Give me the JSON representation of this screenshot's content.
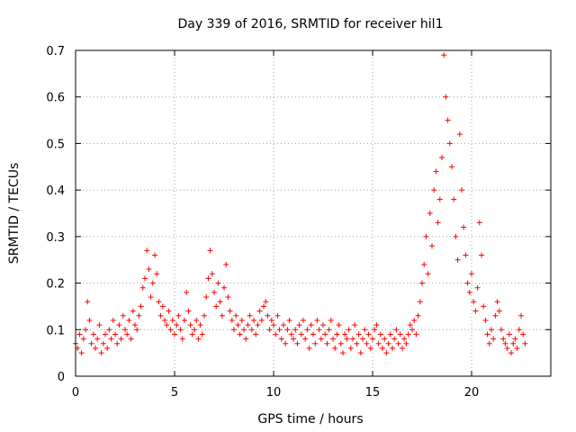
{
  "chart_data": {
    "type": "scatter",
    "title": "Day 339 of 2016, SRMTID for receiver hil1",
    "xlabel": "GPS time / hours",
    "ylabel": "SRMTID / TECUs",
    "xlim": [
      0,
      24
    ],
    "ylim": [
      0,
      0.7
    ],
    "xticks": [
      "0",
      "5",
      "10",
      "15",
      "20"
    ],
    "yticks": [
      "0",
      "0.1",
      "0.2",
      "0.3",
      "0.4",
      "0.5",
      "0.6",
      "0.7"
    ],
    "grid": true,
    "marker": "+",
    "color": "#ff0000",
    "series": [
      {
        "name": "hil1",
        "x": [
          0.0,
          0.1,
          0.2,
          0.3,
          0.4,
          0.5,
          0.6,
          0.7,
          0.8,
          0.9,
          1.0,
          1.1,
          1.2,
          1.3,
          1.4,
          1.5,
          1.6,
          1.7,
          1.8,
          1.9,
          2.0,
          2.1,
          2.2,
          2.3,
          2.4,
          2.5,
          2.6,
          2.7,
          2.8,
          2.9,
          3.0,
          3.1,
          3.2,
          3.3,
          3.4,
          3.5,
          3.6,
          3.7,
          3.8,
          3.9,
          4.0,
          4.1,
          4.2,
          4.3,
          4.4,
          4.5,
          4.6,
          4.7,
          4.8,
          4.9,
          5.0,
          5.1,
          5.2,
          5.3,
          5.4,
          5.5,
          5.6,
          5.7,
          5.8,
          5.9,
          6.0,
          6.1,
          6.2,
          6.3,
          6.4,
          6.5,
          6.6,
          6.7,
          6.8,
          6.9,
          7.0,
          7.1,
          7.2,
          7.3,
          7.4,
          7.5,
          7.6,
          7.7,
          7.8,
          7.9,
          8.0,
          8.1,
          8.2,
          8.3,
          8.4,
          8.5,
          8.6,
          8.7,
          8.8,
          8.9,
          9.0,
          9.1,
          9.2,
          9.3,
          9.4,
          9.5,
          9.6,
          9.7,
          9.8,
          9.9,
          10.0,
          10.1,
          10.2,
          10.3,
          10.4,
          10.5,
          10.6,
          10.7,
          10.8,
          10.9,
          11.0,
          11.1,
          11.2,
          11.3,
          11.4,
          11.5,
          11.6,
          11.7,
          11.8,
          11.9,
          12.0,
          12.1,
          12.2,
          12.3,
          12.4,
          12.5,
          12.6,
          12.7,
          12.8,
          12.9,
          13.0,
          13.1,
          13.2,
          13.3,
          13.4,
          13.5,
          13.6,
          13.7,
          13.8,
          13.9,
          14.0,
          14.1,
          14.2,
          14.3,
          14.4,
          14.5,
          14.6,
          14.7,
          14.8,
          14.9,
          15.0,
          15.1,
          15.2,
          15.3,
          15.4,
          15.5,
          15.6,
          15.7,
          15.8,
          15.9,
          16.0,
          16.1,
          16.2,
          16.3,
          16.4,
          16.5,
          16.6,
          16.7,
          16.8,
          16.9,
          17.0,
          17.1,
          17.2,
          17.3,
          17.4,
          17.5,
          17.6,
          17.7,
          17.8,
          17.9,
          18.0,
          18.1,
          18.2,
          18.3,
          18.4,
          18.5,
          18.6,
          18.7,
          18.8,
          18.9,
          19.0,
          19.1,
          19.2,
          19.3,
          19.4,
          19.5,
          19.6,
          19.7,
          19.8,
          19.9,
          20.0,
          20.1,
          20.2,
          20.3,
          20.4,
          20.5,
          20.6,
          20.7,
          20.8,
          20.9,
          21.0,
          21.1,
          21.2,
          21.3,
          21.4,
          21.5,
          21.6,
          21.7,
          21.8,
          21.9,
          22.0,
          22.1,
          22.2,
          22.3,
          22.4,
          22.5,
          22.6,
          22.7
        ],
        "y": [
          0.07,
          0.06,
          0.09,
          0.05,
          0.08,
          0.1,
          0.16,
          0.12,
          0.07,
          0.09,
          0.06,
          0.08,
          0.11,
          0.05,
          0.07,
          0.09,
          0.06,
          0.1,
          0.08,
          0.12,
          0.09,
          0.07,
          0.11,
          0.08,
          0.13,
          0.1,
          0.09,
          0.12,
          0.08,
          0.14,
          0.11,
          0.1,
          0.13,
          0.15,
          0.19,
          0.21,
          0.27,
          0.23,
          0.17,
          0.2,
          0.26,
          0.22,
          0.16,
          0.13,
          0.15,
          0.12,
          0.11,
          0.14,
          0.1,
          0.12,
          0.09,
          0.11,
          0.13,
          0.1,
          0.08,
          0.12,
          0.18,
          0.14,
          0.11,
          0.09,
          0.1,
          0.12,
          0.08,
          0.11,
          0.09,
          0.13,
          0.17,
          0.21,
          0.27,
          0.22,
          0.18,
          0.15,
          0.2,
          0.16,
          0.13,
          0.19,
          0.24,
          0.17,
          0.14,
          0.12,
          0.1,
          0.13,
          0.11,
          0.09,
          0.12,
          0.1,
          0.08,
          0.11,
          0.13,
          0.1,
          0.12,
          0.09,
          0.11,
          0.14,
          0.12,
          0.15,
          0.16,
          0.13,
          0.1,
          0.12,
          0.11,
          0.09,
          0.13,
          0.1,
          0.08,
          0.11,
          0.07,
          0.1,
          0.12,
          0.09,
          0.08,
          0.1,
          0.07,
          0.11,
          0.09,
          0.12,
          0.08,
          0.1,
          0.06,
          0.11,
          0.09,
          0.07,
          0.12,
          0.1,
          0.08,
          0.11,
          0.09,
          0.07,
          0.1,
          0.12,
          0.08,
          0.06,
          0.09,
          0.11,
          0.07,
          0.05,
          0.09,
          0.08,
          0.1,
          0.06,
          0.08,
          0.11,
          0.07,
          0.09,
          0.05,
          0.08,
          0.1,
          0.07,
          0.09,
          0.06,
          0.08,
          0.1,
          0.11,
          0.07,
          0.09,
          0.06,
          0.08,
          0.05,
          0.07,
          0.09,
          0.06,
          0.08,
          0.1,
          0.07,
          0.09,
          0.06,
          0.08,
          0.07,
          0.09,
          0.11,
          0.1,
          0.12,
          0.09,
          0.13,
          0.16,
          0.2,
          0.24,
          0.3,
          0.22,
          0.35,
          0.28,
          0.4,
          0.44,
          0.33,
          0.38,
          0.47,
          0.69,
          0.6,
          0.55,
          0.5,
          0.45,
          0.38,
          0.3,
          0.25,
          0.52,
          0.4,
          0.32,
          0.26,
          0.2,
          0.18,
          0.22,
          0.16,
          0.14,
          0.19,
          0.33,
          0.26,
          0.15,
          0.12,
          0.09,
          0.07,
          0.1,
          0.08,
          0.13,
          0.16,
          0.14,
          0.1,
          0.08,
          0.07,
          0.06,
          0.09,
          0.05,
          0.07,
          0.08,
          0.06,
          0.1,
          0.13,
          0.09,
          0.07
        ]
      }
    ]
  }
}
